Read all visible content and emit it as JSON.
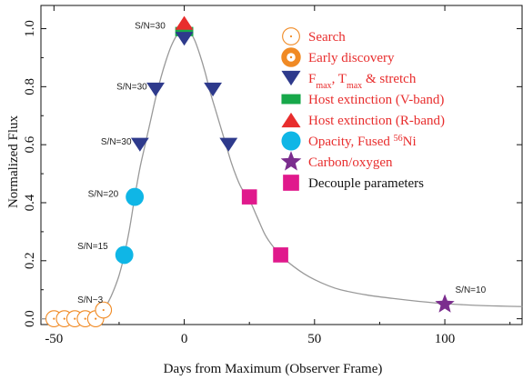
{
  "chart_data": {
    "type": "scatter",
    "xlabel": "Days from Maximum (Observer Frame)",
    "ylabel": "Normalized Flux",
    "xlim": [
      -55,
      130
    ],
    "ylim": [
      -0.02,
      1.08
    ],
    "x_ticks": [
      "-50",
      "0",
      "50",
      "100"
    ],
    "x_tick_values": [
      -50,
      0,
      50,
      100
    ],
    "y_ticks": [
      "0.0",
      "0.2",
      "0.4",
      "0.6",
      "0.8",
      "1.0"
    ],
    "y_tick_values": [
      0,
      0.2,
      0.4,
      0.6,
      0.8,
      1.0
    ],
    "grid": false,
    "legend_position": "top-right",
    "curve": {
      "color": "#999999",
      "x": [
        -55,
        -45,
        -38,
        -35,
        -33,
        -31,
        -29,
        -27,
        -25,
        -23,
        -21,
        -19,
        -17,
        -15,
        -13,
        -11,
        -9,
        -7,
        -5,
        -3,
        -1,
        0,
        2,
        4,
        6,
        8,
        10,
        12,
        14,
        16,
        18,
        20,
        22,
        25,
        28,
        31,
        34,
        38,
        42,
        46,
        50,
        55,
        60,
        70,
        80,
        90,
        100,
        110,
        120,
        130
      ],
      "flux": [
        0.0,
        0.0,
        0.0,
        0.003,
        0.012,
        0.03,
        0.06,
        0.1,
        0.15,
        0.22,
        0.31,
        0.42,
        0.52,
        0.6,
        0.68,
        0.76,
        0.83,
        0.89,
        0.94,
        0.975,
        0.995,
        1.0,
        0.99,
        0.96,
        0.91,
        0.85,
        0.78,
        0.72,
        0.66,
        0.6,
        0.54,
        0.49,
        0.45,
        0.41,
        0.35,
        0.29,
        0.25,
        0.21,
        0.18,
        0.155,
        0.135,
        0.115,
        0.1,
        0.082,
        0.07,
        0.06,
        0.052,
        0.047,
        0.044,
        0.042
      ]
    },
    "series": [
      {
        "name": "Search",
        "marker": "circle-dot",
        "color": "#f08a24",
        "x": [
          -50,
          -46,
          -42,
          -38,
          -34,
          -31
        ],
        "y": [
          0.0,
          0.0,
          0.0,
          0.0,
          0.0,
          0.03
        ]
      },
      {
        "name": "Early discovery",
        "marker": "circle-dot-filled",
        "color": "#f08a24",
        "x": [],
        "y": []
      },
      {
        "name": "F_max, T_max & stretch",
        "marker": "triangle-down",
        "color": "#2e3a8c",
        "x": [
          -17,
          -11,
          0,
          11,
          17
        ],
        "y": [
          0.6,
          0.79,
          0.965,
          0.79,
          0.6
        ]
      },
      {
        "name": "Host extinction (V-band)",
        "marker": "rect",
        "color": "#17a84a",
        "x": [
          0
        ],
        "y": [
          0.99
        ]
      },
      {
        "name": "Host extinction (R-band)",
        "marker": "triangle-up",
        "color": "#e82d2d",
        "x": [
          0
        ],
        "y": [
          1.02
        ]
      },
      {
        "name": "Opacity, Fused 56Ni",
        "marker": "circle",
        "color": "#0fb6e6",
        "x": [
          -23,
          -19
        ],
        "y": [
          0.22,
          0.42
        ]
      },
      {
        "name": "Carbon/oxygen",
        "marker": "star",
        "color": "#7b2d8e",
        "x": [
          100
        ],
        "y": [
          0.05
        ]
      },
      {
        "name": "Decouple parameters",
        "marker": "square",
        "color": "#e0198c",
        "x": [
          25,
          37
        ],
        "y": [
          0.42,
          0.22
        ]
      }
    ],
    "annotations": [
      {
        "text": "S/N=30",
        "x": -19,
        "y": 1.0
      },
      {
        "text": "S/N=30",
        "x": -26,
        "y": 0.79
      },
      {
        "text": "S/N=30",
        "x": -32,
        "y": 0.6
      },
      {
        "text": "S/N=20",
        "x": -37,
        "y": 0.42
      },
      {
        "text": "S/N=15",
        "x": -41,
        "y": 0.24
      },
      {
        "text": "S/N~3",
        "x": -41,
        "y": 0.055
      },
      {
        "text": "S/N=10",
        "x": 104,
        "y": 0.09
      }
    ]
  },
  "legend": [
    {
      "label": "Search",
      "marker": "circle-dot",
      "color": "#f08a24",
      "text_color": "#e82d2d"
    },
    {
      "label": "Early discovery",
      "marker": "circle-dot-filled",
      "color": "#f08a24",
      "text_color": "#e82d2d"
    },
    {
      "label": "F",
      "sub1": "max",
      "mid": ", T",
      "sub2": "max",
      "tail": " & stretch",
      "marker": "triangle-down",
      "color": "#2e3a8c",
      "text_color": "#e82d2d"
    },
    {
      "label": "Host extinction (V-band)",
      "marker": "rect",
      "color": "#17a84a",
      "text_color": "#e82d2d"
    },
    {
      "label": "Host extinction (R-band)",
      "marker": "triangle-up",
      "color": "#e82d2d",
      "text_color": "#e82d2d"
    },
    {
      "label": "Opacity, Fused ",
      "sup": "56",
      "tail": "Ni",
      "marker": "circle",
      "color": "#0fb6e6",
      "text_color": "#e82d2d"
    },
    {
      "label": "Carbon/oxygen",
      "marker": "star",
      "color": "#7b2d8e",
      "text_color": "#e82d2d"
    },
    {
      "label": "Decouple parameters",
      "marker": "square",
      "color": "#e0198c",
      "text_color": "#111111"
    }
  ]
}
